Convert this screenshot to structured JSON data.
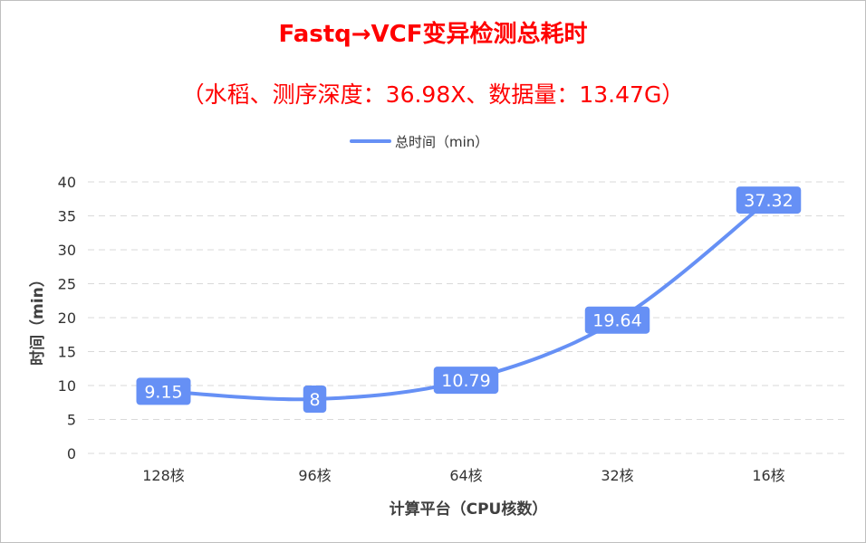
{
  "chart_data": {
    "type": "line",
    "title": "Fastq→VCF变异检测总耗时",
    "subtitle": "（水稻、测序深度：36.98X、数据量：13.47G）",
    "xlabel": "计算平台（CPU核数）",
    "ylabel": "时间（min）",
    "categories": [
      "128核",
      "96核",
      "64核",
      "32核",
      "16核"
    ],
    "series": [
      {
        "name": "总时间（min）",
        "values": [
          9.15,
          8,
          10.79,
          19.64,
          37.32
        ],
        "data_labels": [
          "9.15",
          "8",
          "10.79",
          "19.64",
          "37.32"
        ],
        "color": "#6690f5",
        "smooth": true
      }
    ],
    "ylim": [
      0,
      40
    ],
    "yticks": [
      "0",
      "5",
      "10",
      "15",
      "20",
      "25",
      "30",
      "35",
      "40"
    ],
    "ytick_values": [
      0,
      5,
      10,
      15,
      20,
      25,
      30,
      35,
      40
    ],
    "grid": true,
    "legend_position": "top-center"
  },
  "colors": {
    "title": "#ff0000",
    "series": "#6690f5",
    "grid": "#d9d9d9",
    "text": "#333333"
  }
}
